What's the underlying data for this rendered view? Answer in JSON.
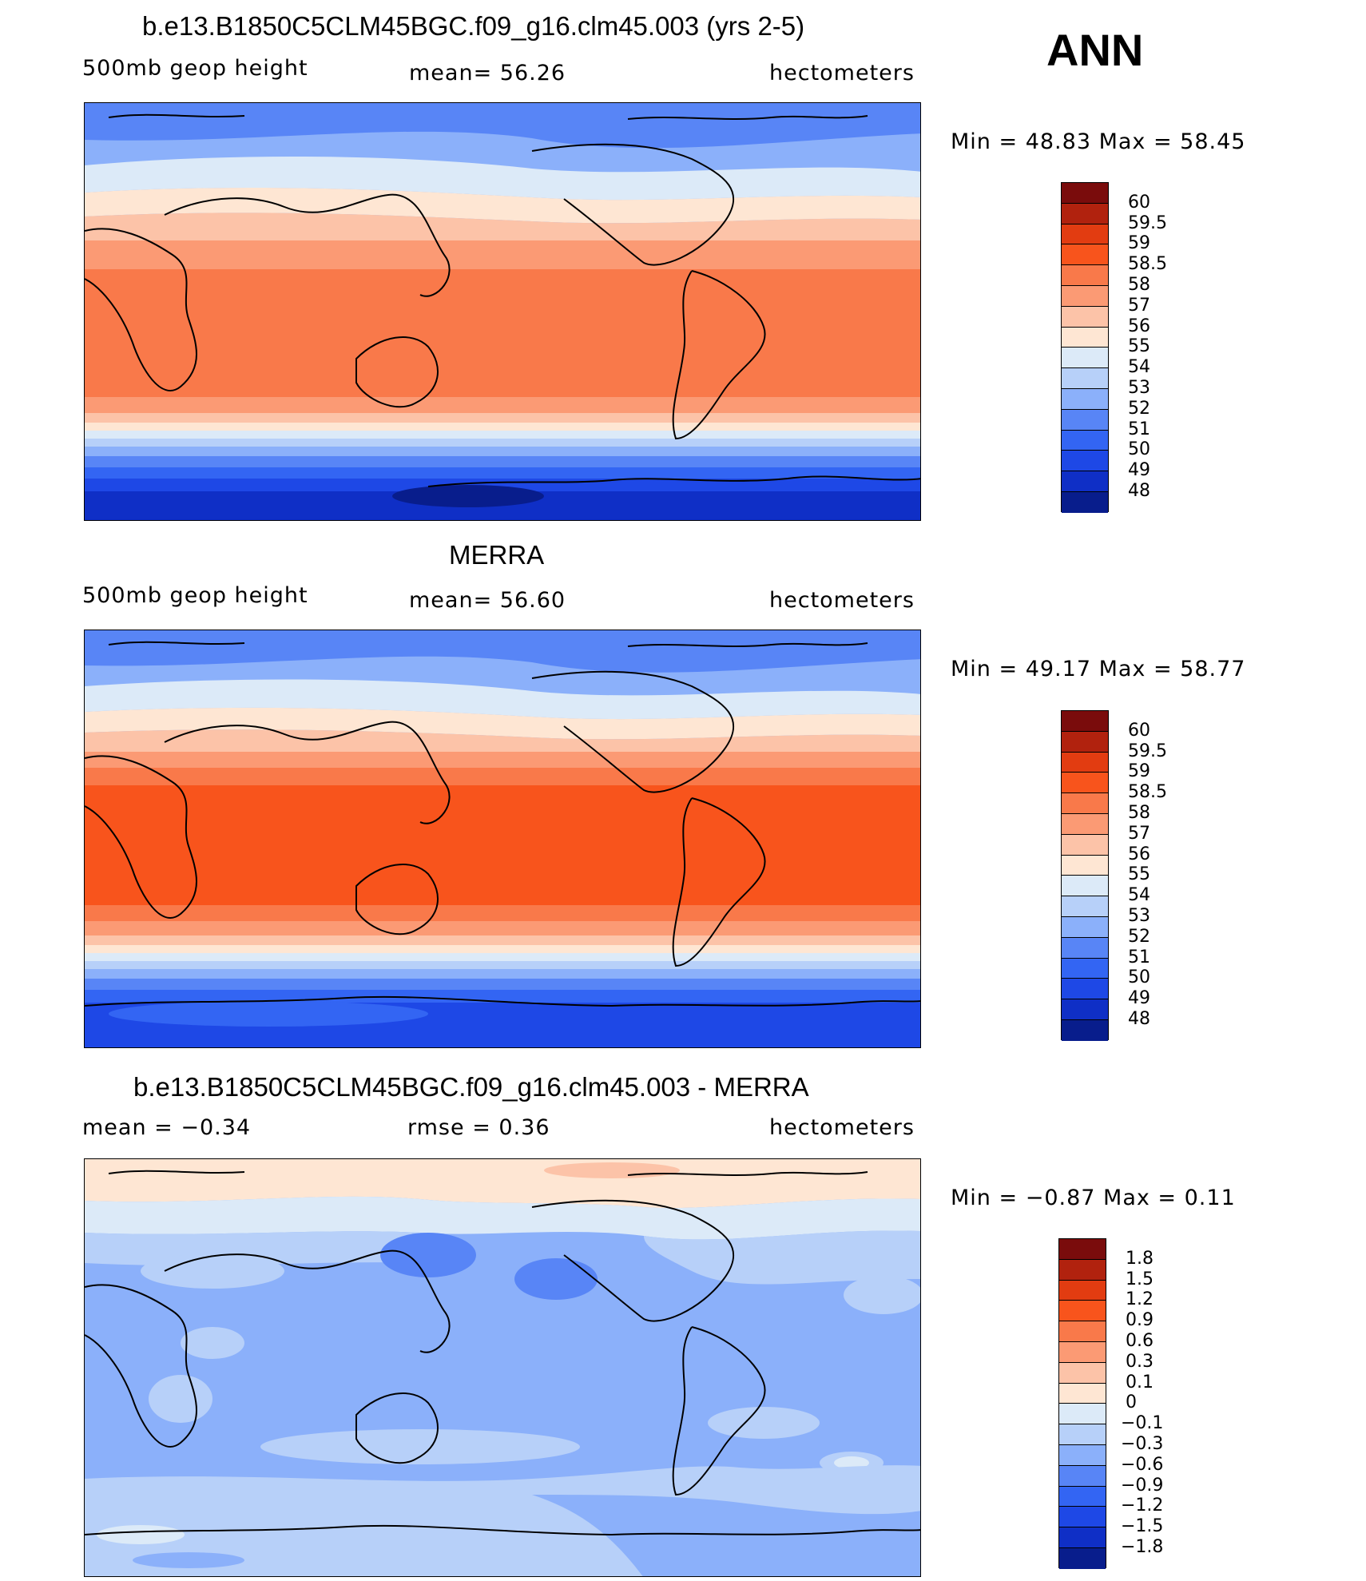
{
  "season": "ANN",
  "panels": [
    {
      "title": "b.e13.B1850C5CLM45BGC.f09_g16.clm45.003 (yrs 2-5)",
      "left_label": "500mb  geop  height",
      "mid_label": "mean=   56.26",
      "right_label": "hectometers",
      "minmax": "Min  =    48.83  Max  =    58.45",
      "colorbar": {
        "labels": [
          "60",
          "59.5",
          "59",
          "58.5",
          "58",
          "57",
          "56",
          "55",
          "54",
          "53",
          "52",
          "51",
          "50",
          "49",
          "48"
        ],
        "colors": [
          "#7a0c0c",
          "#b1220e",
          "#e23c11",
          "#f8541c",
          "#f9794a",
          "#fb9a74",
          "#fcc3a8",
          "#fee6d3",
          "#dceaf8",
          "#b7d0f9",
          "#8bb0fa",
          "#5885f6",
          "#3365f3",
          "#1e48e6",
          "#0f2fc6",
          "#081d8c"
        ]
      },
      "map_fill": {
        "polar_north": "#5885f6",
        "tropics": "#f9794a",
        "polar_south": "#0f2fc6"
      }
    },
    {
      "title": "MERRA",
      "left_label": "500mb  geop  height",
      "mid_label": "mean=   56.60",
      "right_label": "hectometers",
      "minmax": "Min  =    49.17  Max  =    58.77",
      "colorbar": {
        "labels": [
          "60",
          "59.5",
          "59",
          "58.5",
          "58",
          "57",
          "56",
          "55",
          "54",
          "53",
          "52",
          "51",
          "50",
          "49",
          "48"
        ],
        "colors": [
          "#7a0c0c",
          "#b1220e",
          "#e23c11",
          "#f8541c",
          "#f9794a",
          "#fb9a74",
          "#fcc3a8",
          "#fee6d3",
          "#dceaf8",
          "#b7d0f9",
          "#8bb0fa",
          "#5885f6",
          "#3365f3",
          "#1e48e6",
          "#0f2fc6",
          "#081d8c"
        ]
      },
      "map_fill": {
        "polar_north": "#5885f6",
        "tropics": "#f8541c",
        "polar_south": "#1e48e6"
      }
    },
    {
      "title": "b.e13.B1850C5CLM45BGC.f09_g16.clm45.003 - MERRA",
      "left_label": "mean  =    −0.34",
      "mid_label": "rmse  =     0.36",
      "right_label": "hectometers",
      "minmax": "Min  =    −0.87  Max  =     0.11",
      "colorbar": {
        "labels": [
          "1.8",
          "1.5",
          "1.2",
          "0.9",
          "0.6",
          "0.3",
          "0.1",
          "0",
          "−0.1",
          "−0.3",
          "−0.6",
          "−0.9",
          "−1.2",
          "−1.5",
          "−1.8"
        ],
        "colors": [
          "#7a0c0c",
          "#b1220e",
          "#e23c11",
          "#f8541c",
          "#f9794a",
          "#fb9a74",
          "#fcc3a8",
          "#fee6d3",
          "#dceaf8",
          "#b7d0f9",
          "#8bb0fa",
          "#5885f6",
          "#3365f3",
          "#1e48e6",
          "#0f2fc6",
          "#081d8c"
        ]
      },
      "map_fill": {
        "polar_north": "#fee6d3",
        "tropics": "#8bb0fa",
        "polar_south": "#b7d0f9"
      }
    }
  ]
}
